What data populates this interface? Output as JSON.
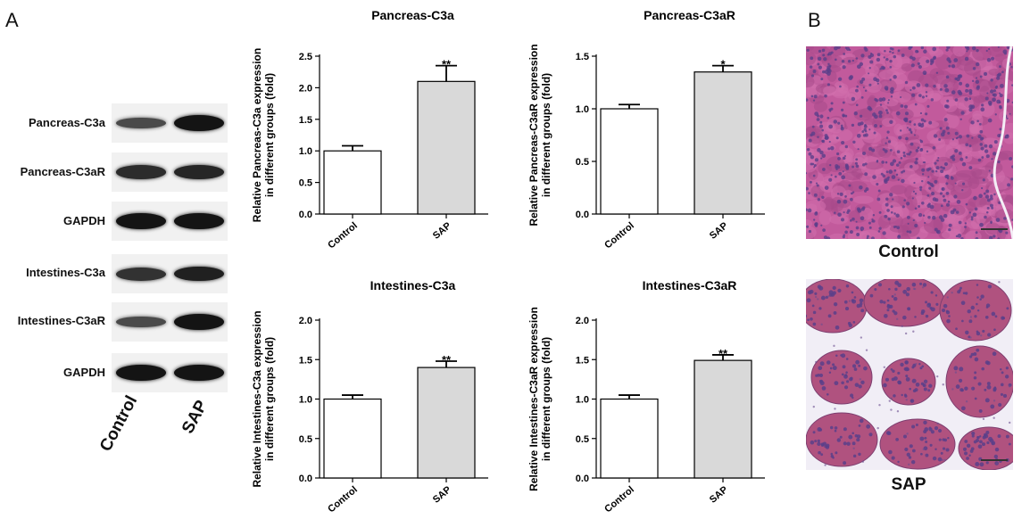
{
  "panel_labels": {
    "a": "A",
    "b": "B"
  },
  "blot": {
    "rows": [
      {
        "label": "Pancreas-C3a",
        "control": 0.55,
        "sap": 1.0
      },
      {
        "label": "Pancreas-C3aR",
        "control": 0.8,
        "sap": 0.85
      },
      {
        "label": "GAPDH",
        "control": 1.0,
        "sap": 1.0
      },
      {
        "label": "Intestines-C3a",
        "control": 0.75,
        "sap": 0.9
      },
      {
        "label": "Intestines-C3aR",
        "control": 0.55,
        "sap": 1.0
      },
      {
        "label": "GAPDH",
        "control": 1.0,
        "sap": 1.0
      }
    ],
    "lanes": [
      "Control",
      "SAP"
    ]
  },
  "chart_data": [
    {
      "type": "bar",
      "title": "Pancreas-C3a",
      "ylabel_line1": "Relative Pancreas-C3a expression",
      "ylabel_line2": "in different groups (fold)",
      "categories": [
        "Control",
        "SAP"
      ],
      "values": [
        1.0,
        2.1
      ],
      "errors": [
        0.08,
        0.25
      ],
      "significance": [
        "",
        "**"
      ],
      "ylim": [
        0,
        2.5
      ],
      "yticks": [
        "0.0",
        "0.5",
        "1.0",
        "1.5",
        "2.0",
        "2.5"
      ],
      "colors": [
        "#ffffff",
        "#d9d9d9"
      ]
    },
    {
      "type": "bar",
      "title": "Pancreas-C3aR",
      "ylabel_line1": "Relative Pancreas-C3aR expression",
      "ylabel_line2": "in different groups (fold)",
      "categories": [
        "Control",
        "SAP"
      ],
      "values": [
        1.0,
        1.35
      ],
      "errors": [
        0.04,
        0.06
      ],
      "significance": [
        "",
        "*"
      ],
      "ylim": [
        0,
        1.5
      ],
      "yticks": [
        "0.0",
        "0.5",
        "1.0",
        "1.5"
      ],
      "colors": [
        "#ffffff",
        "#d9d9d9"
      ]
    },
    {
      "type": "bar",
      "title": "Intestines-C3a",
      "ylabel_line1": "Relative Intestines-C3a expression",
      "ylabel_line2": "in different groups (fold)",
      "categories": [
        "Control",
        "SAP"
      ],
      "values": [
        1.0,
        1.4
      ],
      "errors": [
        0.05,
        0.08
      ],
      "significance": [
        "",
        "**"
      ],
      "ylim": [
        0,
        2.0
      ],
      "yticks": [
        "0.0",
        "0.5",
        "1.0",
        "1.5",
        "2.0"
      ],
      "colors": [
        "#ffffff",
        "#d9d9d9"
      ]
    },
    {
      "type": "bar",
      "title": "Intestines-C3aR",
      "ylabel_line1": "Relative Intestines-C3aR expression",
      "ylabel_line2": "in different groups (fold)",
      "categories": [
        "Control",
        "SAP"
      ],
      "values": [
        1.0,
        1.49
      ],
      "errors": [
        0.05,
        0.07
      ],
      "significance": [
        "",
        "**"
      ],
      "ylim": [
        0,
        2.0
      ],
      "yticks": [
        "0.0",
        "0.5",
        "1.0",
        "1.5",
        "2.0"
      ],
      "colors": [
        "#ffffff",
        "#d9d9d9"
      ]
    }
  ],
  "histology": {
    "control_caption": "Control",
    "sap_caption": "SAP",
    "tissue_colors": {
      "parenchyma": "#c25a9c",
      "nuclei": "#5a3f8a",
      "stroma": "#f1eef6",
      "acini_sap": "#b0527f"
    }
  }
}
